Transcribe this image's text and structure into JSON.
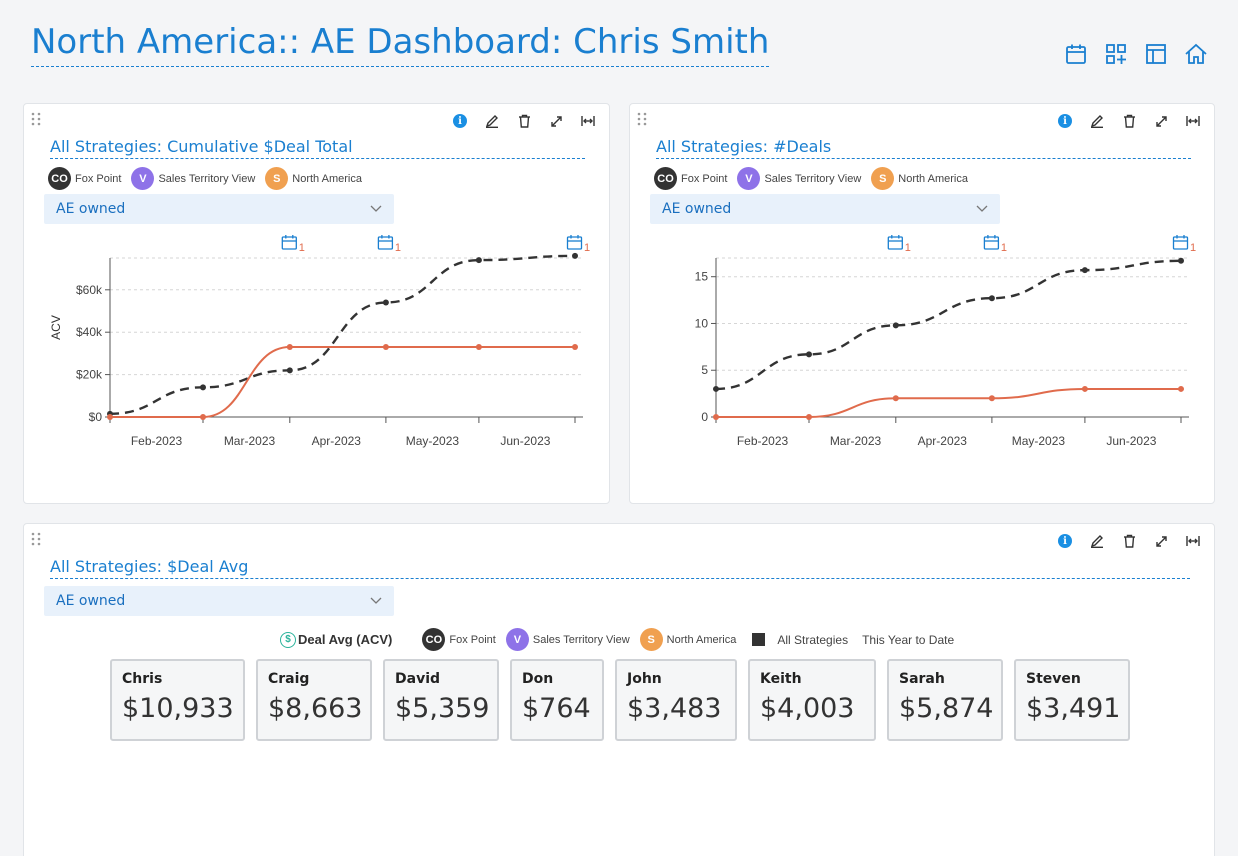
{
  "page": {
    "title": "North America:: AE Dashboard: Chris Smith",
    "top_icons": [
      "calendar-icon",
      "add-widget-icon",
      "layout-icon",
      "home-icon"
    ]
  },
  "panels": [
    {
      "title": "All Strategies: Cumulative $Deal Total",
      "filter": "AE owned",
      "chips": [
        {
          "initials": "CO",
          "label": "Fox Point",
          "color": "#333333"
        },
        {
          "initials": "V",
          "label": "Sales Territory View",
          "color": "#8e72e8"
        },
        {
          "initials": "S",
          "label": "North America",
          "color": "#f0a050"
        }
      ],
      "tools": [
        "info-icon",
        "edit-icon",
        "delete-icon",
        "expand-icon",
        "width-icon"
      ]
    },
    {
      "title": "All Strategies: #Deals",
      "filter": "AE owned",
      "chips": [
        {
          "initials": "CO",
          "label": "Fox Point",
          "color": "#333333"
        },
        {
          "initials": "V",
          "label": "Sales Territory View",
          "color": "#8e72e8"
        },
        {
          "initials": "S",
          "label": "North America",
          "color": "#f0a050"
        }
      ],
      "tools": [
        "info-icon",
        "edit-icon",
        "delete-icon",
        "expand-icon",
        "width-icon"
      ]
    },
    {
      "title": "All Strategies: $Deal Avg",
      "filter": "AE owned",
      "legend": {
        "metric": "Deal Avg (ACV)",
        "chips": [
          {
            "initials": "CO",
            "label": "Fox Point",
            "color": "#333333"
          },
          {
            "initials": "V",
            "label": "Sales Territory View",
            "color": "#8e72e8"
          },
          {
            "initials": "S",
            "label": "North America",
            "color": "#f0a050"
          }
        ],
        "series_label": "All Strategies",
        "period": "This Year to Date"
      },
      "cards": [
        {
          "name": "Chris",
          "value": "$10,933"
        },
        {
          "name": "Craig",
          "value": "$8,663"
        },
        {
          "name": "David",
          "value": "$5,359"
        },
        {
          "name": "Don",
          "value": "$764"
        },
        {
          "name": "John",
          "value": "$3,483"
        },
        {
          "name": "Keith",
          "value": "$4,003"
        },
        {
          "name": "Sarah",
          "value": "$5,874"
        },
        {
          "name": "Steven",
          "value": "$3,491"
        }
      ],
      "tools": [
        "info-icon",
        "edit-icon",
        "delete-icon",
        "expand-icon",
        "width-icon"
      ]
    }
  ],
  "chart_data": [
    {
      "type": "line",
      "ylabel": "ACV",
      "xlabel": "",
      "ylim": [
        0,
        75000
      ],
      "y_ticks": [
        0,
        20000,
        40000,
        60000
      ],
      "y_tick_labels": [
        "$0",
        "$20k",
        "$40k",
        "$60k"
      ],
      "x_tick_labels": [
        "Feb-2023",
        "Mar-2023",
        "Apr-2023",
        "May-2023",
        "Jun-2023"
      ],
      "grid": true,
      "event_markers": [
        {
          "x": "Mar-2023",
          "count": "1"
        },
        {
          "x": "Apr-2023",
          "count": "1"
        },
        {
          "x": "Jun-2023",
          "count": "1"
        }
      ],
      "series": [
        {
          "color": "#333333",
          "style": "dashed",
          "x": [
            "2023-01-01",
            "2023-01-31",
            "2023-02-28",
            "2023-03-31",
            "2023-04-30",
            "2023-05-31"
          ],
          "values": [
            1500,
            14000,
            22000,
            54000,
            74000,
            76000
          ]
        },
        {
          "color": "#e06b4c",
          "style": "solid",
          "x": [
            "2023-01-01",
            "2023-01-31",
            "2023-02-28",
            "2023-03-31",
            "2023-04-30",
            "2023-05-31"
          ],
          "values": [
            0,
            0,
            33000,
            33000,
            33000,
            33000
          ]
        }
      ]
    },
    {
      "type": "line",
      "ylabel": "",
      "xlabel": "",
      "ylim": [
        0,
        17
      ],
      "y_ticks": [
        0,
        5,
        10,
        15
      ],
      "y_tick_labels": [
        "0",
        "5",
        "10",
        "15"
      ],
      "x_tick_labels": [
        "Feb-2023",
        "Mar-2023",
        "Apr-2023",
        "May-2023",
        "Jun-2023"
      ],
      "grid": true,
      "event_markers": [
        {
          "x": "Mar-2023",
          "count": "1"
        },
        {
          "x": "Apr-2023",
          "count": "1"
        },
        {
          "x": "Jun-2023",
          "count": "1"
        }
      ],
      "series": [
        {
          "color": "#333333",
          "style": "dashed",
          "x": [
            "2023-01-01",
            "2023-01-31",
            "2023-02-28",
            "2023-03-31",
            "2023-04-30",
            "2023-05-31"
          ],
          "values": [
            3,
            6.7,
            9.8,
            12.7,
            15.7,
            16.7
          ]
        },
        {
          "color": "#e06b4c",
          "style": "solid",
          "x": [
            "2023-01-01",
            "2023-01-31",
            "2023-02-28",
            "2023-03-31",
            "2023-04-30",
            "2023-05-31"
          ],
          "values": [
            0,
            0,
            2,
            2,
            3,
            3
          ]
        }
      ]
    }
  ]
}
